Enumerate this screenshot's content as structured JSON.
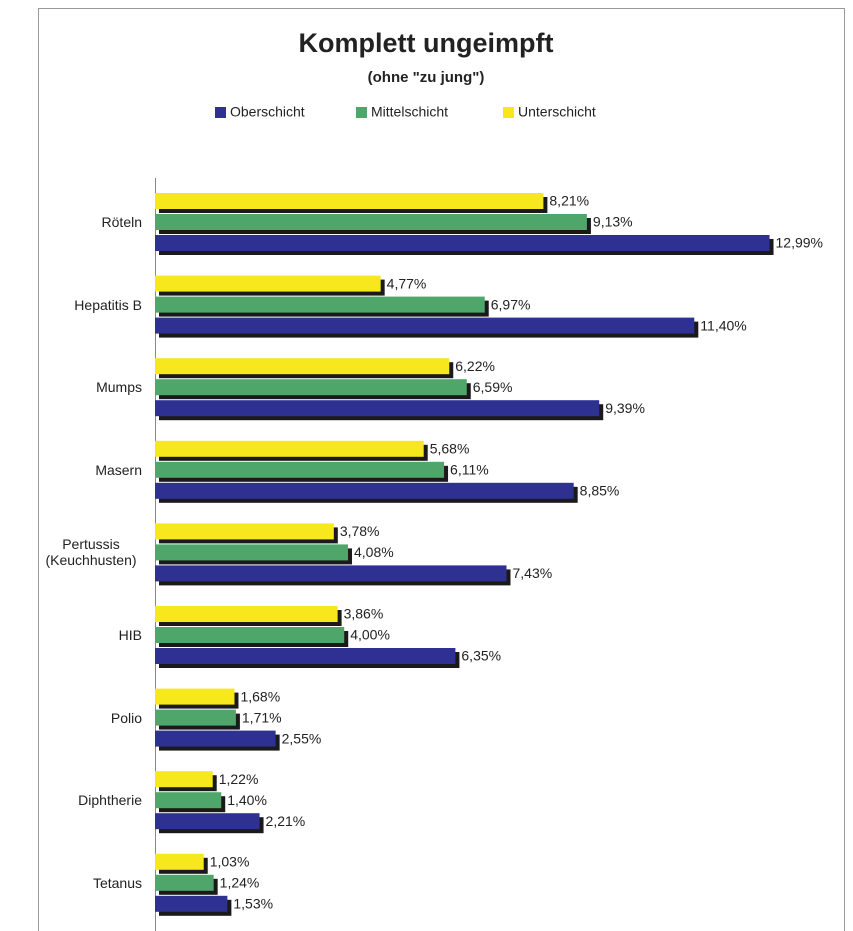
{
  "chart_data": {
    "type": "hbar",
    "title": "Komplett ungeimpft",
    "subtitle": "(ohne \"zu jung\")",
    "categories": [
      "Röteln",
      "Hepatitis B",
      "Mumps",
      "Masern",
      "Pertussis (Keuchhusten)",
      "HIB",
      "Polio",
      "Diphtherie",
      "Tetanus"
    ],
    "series": [
      {
        "name": "Oberschicht",
        "color": "#2e3192",
        "values": [
          12.99,
          11.4,
          9.39,
          8.85,
          7.43,
          6.35,
          2.55,
          2.21,
          1.53
        ],
        "value_labels": [
          "12,99%",
          "11,40%",
          "9,39%",
          "8,85%",
          "7,43%",
          "6,35%",
          "2,55%",
          "2,21%",
          "1,53%"
        ]
      },
      {
        "name": "Mittelschicht",
        "color": "#4ea66a",
        "values": [
          9.13,
          6.97,
          6.59,
          6.11,
          4.08,
          4.0,
          1.71,
          1.4,
          1.24
        ],
        "value_labels": [
          "9,13%",
          "6,97%",
          "6,59%",
          "6,11%",
          "4,08%",
          "4,00%",
          "1,71%",
          "1,40%",
          "1,24%"
        ]
      },
      {
        "name": "Unterschicht",
        "color": "#f7e81e",
        "values": [
          8.21,
          4.77,
          6.22,
          5.68,
          3.78,
          3.86,
          1.68,
          1.22,
          1.03
        ],
        "value_labels": [
          "8,21%",
          "4,77%",
          "6,22%",
          "5,68%",
          "3,78%",
          "3,86%",
          "1,68%",
          "1,22%",
          "1,03%"
        ]
      }
    ],
    "xlim": [
      0,
      13
    ]
  }
}
